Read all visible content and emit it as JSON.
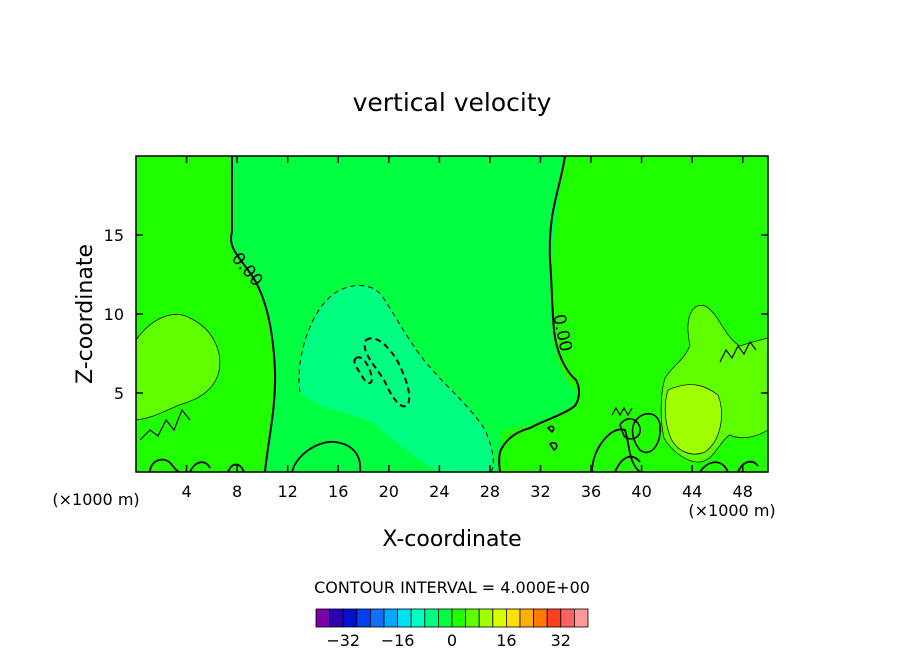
{
  "chart_data": {
    "type": "contour",
    "title": "vertical velocity",
    "xlabel": "X-coordinate",
    "ylabel": "Z-coordinate",
    "x_unit": "(×1000 m)",
    "z_unit": "(×1000 m)",
    "xlim": [
      0,
      50
    ],
    "ylim": [
      0,
      20
    ],
    "x_ticks": [
      4,
      8,
      12,
      16,
      20,
      24,
      28,
      32,
      36,
      40,
      44,
      48
    ],
    "y_ticks": [
      5,
      10,
      15
    ],
    "contour_interval_text": "CONTOUR INTERVAL = 4.000E+00",
    "contour_label": "0.00",
    "colorbar": {
      "labels": [
        "-32",
        "-16",
        "0",
        "16",
        "32"
      ],
      "label_values": [
        -32,
        -16,
        0,
        16,
        32
      ],
      "levels": [
        -40,
        -36,
        -32,
        -28,
        -24,
        -20,
        -16,
        -12,
        -8,
        -4,
        0,
        4,
        8,
        12,
        16,
        20,
        24,
        28,
        32,
        36,
        40
      ],
      "colors": [
        "#7a00a8",
        "#2a00b0",
        "#0010d0",
        "#0040f0",
        "#1070ff",
        "#00a8ff",
        "#00e0f0",
        "#00ffc0",
        "#00ff80",
        "#00ff40",
        "#20ff00",
        "#60ff00",
        "#a0ff00",
        "#d8ff00",
        "#ffe000",
        "#ffb000",
        "#ff7800",
        "#ff4020",
        "#ff6060",
        "#ff9898"
      ]
    },
    "regions": [
      {
        "name": "background",
        "value": 0,
        "color": "#20ff00"
      },
      {
        "name": "central-downdraft",
        "value": -4,
        "color": "#00ff40"
      },
      {
        "name": "central-downdraft-core",
        "value": -8,
        "color": "#00ff80"
      },
      {
        "name": "left-updraft",
        "value": 4,
        "color": "#60ff00"
      },
      {
        "name": "right-updraft",
        "value": 4,
        "color": "#60ff00"
      },
      {
        "name": "right-updraft-core",
        "value": 8,
        "color": "#a0ff00"
      }
    ]
  }
}
